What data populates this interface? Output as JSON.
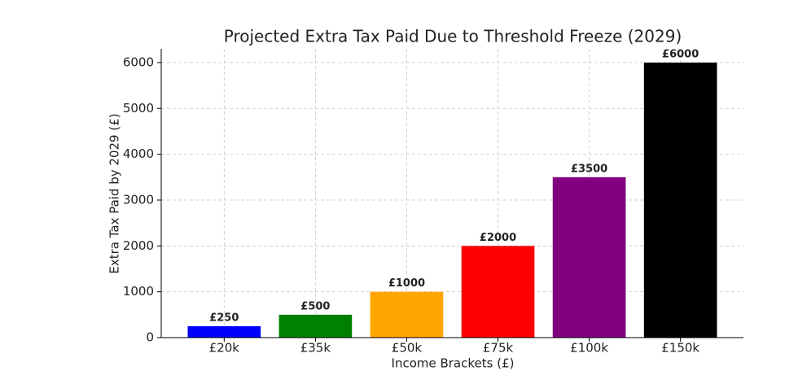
{
  "chart_data": {
    "type": "bar",
    "title": "Projected Extra Tax Paid Due to Threshold Freeze (2029)",
    "xlabel": "Income Brackets (£)",
    "ylabel": "Extra Tax Paid by 2029 (£)",
    "categories": [
      "£20k",
      "£35k",
      "£50k",
      "£75k",
      "£100k",
      "£150k"
    ],
    "values": [
      250,
      500,
      1000,
      2000,
      3500,
      6000
    ],
    "value_labels": [
      "£250",
      "£500",
      "£1000",
      "£2000",
      "£3500",
      "£6000"
    ],
    "colors": [
      "#0000ff",
      "#008000",
      "#ffa500",
      "#ff0000",
      "#800080",
      "#000000"
    ],
    "ylim": [
      0,
      6300
    ],
    "yticks": [
      0,
      1000,
      2000,
      3000,
      4000,
      5000,
      6000
    ],
    "grid": true
  }
}
